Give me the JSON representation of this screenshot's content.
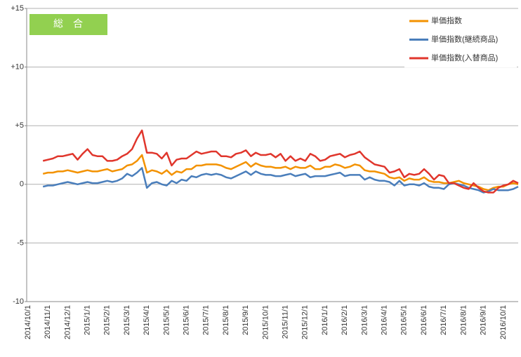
{
  "chart_data": {
    "type": "line",
    "label": "総　合",
    "categories": [
      "2014/10/1",
      null,
      null,
      null,
      "2014/11/1",
      null,
      null,
      null,
      "2014/12/1",
      null,
      null,
      null,
      "2015/1/1",
      null,
      null,
      null,
      "2015/2/1",
      null,
      null,
      null,
      "2015/3/1",
      null,
      null,
      null,
      "2015/4/1",
      null,
      null,
      null,
      "2015/5/1",
      null,
      null,
      null,
      "2015/6/1",
      null,
      null,
      null,
      "2015/7/1",
      null,
      null,
      null,
      "2015/8/1",
      null,
      null,
      null,
      "2015/9/1",
      null,
      null,
      null,
      "2015/10/1",
      null,
      null,
      null,
      "2015/11/1",
      null,
      null,
      null,
      "2015/12/1",
      null,
      null,
      null,
      "2016/1/1",
      null,
      null,
      null,
      "2016/2/1",
      null,
      null,
      null,
      "2016/3/1",
      null,
      null,
      null,
      "2016/4/1",
      null,
      null,
      null,
      "2016/5/1",
      null,
      null,
      null,
      "2016/6/1",
      null,
      null,
      null,
      "2016/7/1",
      null,
      null,
      null,
      "2016/8/1",
      null,
      null,
      null,
      "2016/9/1",
      null,
      null,
      null,
      "2016/10/1",
      null,
      null,
      null
    ],
    "series": [
      {
        "name": "単価指数",
        "color": "#f39200",
        "values": [
          null,
          null,
          null,
          0.9,
          1.0,
          1.0,
          1.1,
          1.1,
          1.2,
          1.1,
          1.0,
          1.1,
          1.2,
          1.1,
          1.1,
          1.2,
          1.3,
          1.1,
          1.2,
          1.3,
          1.6,
          1.7,
          2.0,
          2.5,
          1.0,
          1.2,
          1.1,
          0.9,
          1.2,
          0.8,
          1.1,
          1.0,
          1.3,
          1.3,
          1.6,
          1.6,
          1.7,
          1.7,
          1.7,
          1.6,
          1.4,
          1.3,
          1.5,
          1.7,
          1.9,
          1.5,
          1.8,
          1.6,
          1.5,
          1.5,
          1.4,
          1.4,
          1.5,
          1.3,
          1.5,
          1.4,
          1.4,
          1.6,
          1.3,
          1.3,
          1.5,
          1.5,
          1.7,
          1.6,
          1.4,
          1.5,
          1.7,
          1.6,
          1.2,
          1.1,
          1.1,
          1.0,
          0.9,
          0.6,
          0.5,
          0.6,
          0.3,
          0.5,
          0.4,
          0.4,
          0.6,
          0.3,
          0.2,
          0.2,
          0.1,
          0.1,
          0.2,
          0.3,
          0.1,
          0.0,
          -0.1,
          -0.2,
          -0.4,
          -0.5,
          -0.3,
          -0.2,
          -0.2,
          0.0,
          0.1,
          0.0
        ]
      },
      {
        "name": "単価指数(継続商品)",
        "color": "#4a7ebb",
        "values": [
          null,
          null,
          null,
          -0.2,
          -0.1,
          -0.1,
          0.0,
          0.1,
          0.2,
          0.1,
          0.0,
          0.1,
          0.2,
          0.1,
          0.1,
          0.2,
          0.3,
          0.2,
          0.3,
          0.5,
          0.9,
          0.7,
          1.0,
          1.4,
          -0.3,
          0.1,
          0.2,
          0.0,
          -0.1,
          0.3,
          0.1,
          0.4,
          0.3,
          0.7,
          0.6,
          0.8,
          0.9,
          0.8,
          0.9,
          0.8,
          0.6,
          0.5,
          0.7,
          0.9,
          1.1,
          0.8,
          1.1,
          0.9,
          0.8,
          0.8,
          0.7,
          0.7,
          0.8,
          0.9,
          0.7,
          0.8,
          0.9,
          0.6,
          0.7,
          0.7,
          0.7,
          0.8,
          0.9,
          1.0,
          0.7,
          0.8,
          0.8,
          0.8,
          0.4,
          0.6,
          0.4,
          0.3,
          0.3,
          0.2,
          -0.1,
          0.3,
          -0.1,
          0.0,
          0.0,
          -0.1,
          0.1,
          -0.2,
          -0.3,
          -0.3,
          -0.4,
          0.0,
          0.1,
          0.0,
          -0.1,
          -0.3,
          -0.4,
          -0.5,
          -0.7,
          -0.6,
          -0.4,
          -0.5,
          -0.5,
          -0.5,
          -0.4,
          -0.2
        ]
      },
      {
        "name": "単価指数(入替商品)",
        "color": "#e0362c",
        "values": [
          null,
          null,
          null,
          2.0,
          2.1,
          2.2,
          2.4,
          2.4,
          2.5,
          2.6,
          2.1,
          2.6,
          3.0,
          2.5,
          2.4,
          2.4,
          2.0,
          2.0,
          2.1,
          2.4,
          2.6,
          3.0,
          3.9,
          4.6,
          2.7,
          2.7,
          2.6,
          2.2,
          2.7,
          1.6,
          2.1,
          2.2,
          2.2,
          2.5,
          2.8,
          2.6,
          2.7,
          2.8,
          2.8,
          2.4,
          2.4,
          2.3,
          2.6,
          2.7,
          2.9,
          2.4,
          2.7,
          2.5,
          2.5,
          2.6,
          2.3,
          2.6,
          2.0,
          2.4,
          2.0,
          2.2,
          2.0,
          2.6,
          2.4,
          2.0,
          2.1,
          2.4,
          2.5,
          2.6,
          2.3,
          2.5,
          2.6,
          2.8,
          2.3,
          2.0,
          1.7,
          1.6,
          1.5,
          1.0,
          1.1,
          1.3,
          0.6,
          0.9,
          0.8,
          0.9,
          1.3,
          0.9,
          0.4,
          0.8,
          0.7,
          0.1,
          0.1,
          -0.1,
          -0.3,
          -0.4,
          0.1,
          -0.3,
          -0.6,
          -0.7,
          -0.7,
          -0.3,
          -0.1,
          0.0,
          0.3,
          0.1
        ]
      }
    ],
    "ylim": [
      -10,
      15
    ],
    "yticks": [
      -10,
      -5,
      0,
      {
        "value": 5,
        "label": "+5"
      },
      {
        "value": 10,
        "label": "+10"
      },
      {
        "value": 15,
        "label": "+15"
      }
    ],
    "grid": true
  }
}
